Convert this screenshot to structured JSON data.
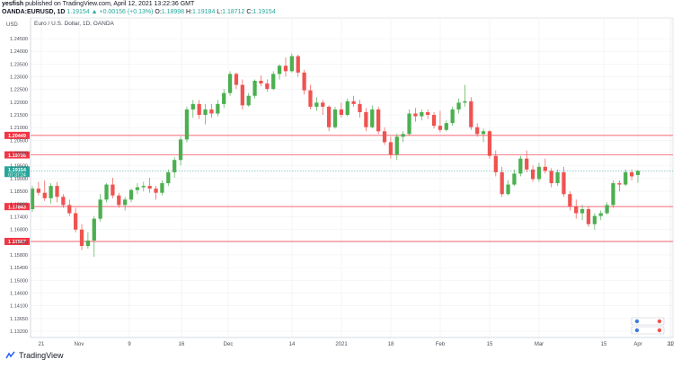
{
  "header": {
    "line1_user": "yesfish",
    "line1_rest": "published on TradingView.com, April 12, 2021 13:22:36 GMT",
    "symbol": "OANDA:EURUSD, 1D",
    "change": "1.19154 ▲ +0.00156 (+0.13%)",
    "o_label": "O:",
    "o_value": "1.18998",
    "h_label": "H:",
    "h_value": "1.19184",
    "l_label": "L:",
    "l_value": "1.18712",
    "c_label": "C:",
    "c_value": "1.19154"
  },
  "footer": {
    "brand": "TradingView"
  },
  "colors": {
    "up": "#26a69a",
    "up_body": "#4caf50",
    "down": "#ef5350",
    "grid": "#eef0f3",
    "hline": "#f23645",
    "axis_text": "#4a4e59"
  },
  "chart_data": {
    "type": "candlestick",
    "title": "Euro / U.S. Dollar, 1D, OANDA",
    "currency": "USD",
    "ylim": [
      1.1305,
      1.2475
    ],
    "y_ticks": [
      "1.24500",
      "1.24000",
      "1.23500",
      "1.23000",
      "1.22500",
      "1.22000",
      "1.21500",
      "1.21000",
      "1.20500",
      "1.20000",
      "1.19500",
      "1.19000",
      "1.18500",
      "1.18000",
      "1.17400",
      "1.16800",
      "1.16200",
      "1.15800",
      "1.15400",
      "1.15000",
      "1.14600",
      "1.14100",
      "1.13650",
      "1.13200"
    ],
    "x_ticks": [
      "21",
      "Nov",
      "9",
      "16",
      "Dec",
      "14",
      "2021",
      "18",
      "Feb",
      "15",
      "Mar",
      "15",
      "Apr",
      "12",
      "21"
    ],
    "last_price": "1.19154",
    "countdown": "07:37:24",
    "horizontal_lines": [
      {
        "label": "1.20449",
        "value": 1.20449
      },
      {
        "label": "1.19736",
        "value": 1.19736
      },
      {
        "label": "1.17843",
        "value": 1.17843
      },
      {
        "label": "1.16567",
        "value": 1.16567
      }
    ],
    "scale_icons": [
      "log-scale-icon",
      "percent-scale-icon"
    ],
    "candles": [
      [
        1.1775,
        1.186,
        1.1765,
        1.185
      ],
      [
        1.185,
        1.1875,
        1.1825,
        1.1835
      ],
      [
        1.1835,
        1.188,
        1.1805,
        1.1815
      ],
      [
        1.1815,
        1.187,
        1.1795,
        1.186
      ],
      [
        1.186,
        1.1875,
        1.18,
        1.182
      ],
      [
        1.182,
        1.183,
        1.178,
        1.179
      ],
      [
        1.179,
        1.181,
        1.175,
        1.176
      ],
      [
        1.176,
        1.178,
        1.169,
        1.17
      ],
      [
        1.17,
        1.172,
        1.1625,
        1.164
      ],
      [
        1.164,
        1.169,
        1.163,
        1.166
      ],
      [
        1.166,
        1.175,
        1.16,
        1.174
      ],
      [
        1.174,
        1.183,
        1.173,
        1.181
      ],
      [
        1.181,
        1.187,
        1.18,
        1.1865
      ],
      [
        1.1865,
        1.189,
        1.1815,
        1.1825
      ],
      [
        1.1825,
        1.1835,
        1.178,
        1.179
      ],
      [
        1.179,
        1.182,
        1.177,
        1.181
      ],
      [
        1.181,
        1.185,
        1.18,
        1.1845
      ],
      [
        1.1845,
        1.187,
        1.183,
        1.1855
      ],
      [
        1.1855,
        1.1875,
        1.184,
        1.186
      ],
      [
        1.186,
        1.189,
        1.1835,
        1.185
      ],
      [
        1.185,
        1.186,
        1.181,
        1.1835
      ],
      [
        1.1835,
        1.188,
        1.1825,
        1.187
      ],
      [
        1.187,
        1.192,
        1.186,
        1.191
      ],
      [
        1.191,
        1.1965,
        1.189,
        1.1955
      ],
      [
        1.1955,
        1.204,
        1.1935,
        1.203
      ],
      [
        1.203,
        1.215,
        1.202,
        1.214
      ],
      [
        1.214,
        1.2175,
        1.211,
        1.216
      ],
      [
        1.216,
        1.2175,
        1.2105,
        1.212
      ],
      [
        1.212,
        1.216,
        1.2085,
        1.214
      ],
      [
        1.214,
        1.216,
        1.211,
        1.2125
      ],
      [
        1.2125,
        1.2175,
        1.2115,
        1.216
      ],
      [
        1.216,
        1.2215,
        1.2145,
        1.22
      ],
      [
        1.22,
        1.228,
        1.219,
        1.227
      ],
      [
        1.227,
        1.2275,
        1.2215,
        1.223
      ],
      [
        1.223,
        1.225,
        1.214,
        1.2155
      ],
      [
        1.2155,
        1.22,
        1.215,
        1.219
      ],
      [
        1.219,
        1.225,
        1.218,
        1.2245
      ],
      [
        1.2245,
        1.2265,
        1.2225,
        1.2235
      ],
      [
        1.2235,
        1.225,
        1.2205,
        1.2215
      ],
      [
        1.2215,
        1.228,
        1.221,
        1.227
      ],
      [
        1.227,
        1.2305,
        1.225,
        1.23
      ],
      [
        1.23,
        1.233,
        1.226,
        1.228
      ],
      [
        1.228,
        1.2345,
        1.2275,
        1.2335
      ],
      [
        1.2335,
        1.234,
        1.226,
        1.2275
      ],
      [
        1.2275,
        1.2285,
        1.2195,
        1.221
      ],
      [
        1.221,
        1.223,
        1.214,
        1.215
      ],
      [
        1.215,
        1.2185,
        1.2135,
        1.2165
      ],
      [
        1.2165,
        1.2175,
        1.212,
        1.215
      ],
      [
        1.215,
        1.2155,
        1.206,
        1.2075
      ],
      [
        1.2075,
        1.215,
        1.207,
        1.214
      ],
      [
        1.214,
        1.2165,
        1.211,
        1.212
      ],
      [
        1.212,
        1.218,
        1.2115,
        1.217
      ],
      [
        1.217,
        1.219,
        1.215,
        1.216
      ],
      [
        1.216,
        1.2175,
        1.211,
        1.213
      ],
      [
        1.213,
        1.2145,
        1.206,
        1.2075
      ],
      [
        1.2075,
        1.2155,
        1.207,
        1.214
      ],
      [
        1.214,
        1.215,
        1.205,
        1.206
      ],
      [
        1.206,
        1.2075,
        1.201,
        1.202
      ],
      [
        1.202,
        1.204,
        1.196,
        1.1975
      ],
      [
        1.1975,
        1.205,
        1.1955,
        1.204
      ],
      [
        1.204,
        1.206,
        1.202,
        1.205
      ],
      [
        1.205,
        1.214,
        1.2045,
        1.2125
      ],
      [
        1.2125,
        1.2145,
        1.2095,
        1.2115
      ],
      [
        1.2115,
        1.214,
        1.21,
        1.213
      ],
      [
        1.213,
        1.214,
        1.2105,
        1.212
      ],
      [
        1.212,
        1.213,
        1.207,
        1.208
      ],
      [
        1.208,
        1.2135,
        1.2055,
        1.2065
      ],
      [
        1.2065,
        1.21,
        1.206,
        1.209
      ],
      [
        1.209,
        1.215,
        1.208,
        1.214
      ],
      [
        1.214,
        1.218,
        1.2125,
        1.2165
      ],
      [
        1.2165,
        1.223,
        1.215,
        1.217
      ],
      [
        1.217,
        1.2185,
        1.2065,
        1.2075
      ],
      [
        1.2075,
        1.209,
        1.204,
        1.205
      ],
      [
        1.205,
        1.207,
        1.202,
        1.206
      ],
      [
        1.206,
        1.2065,
        1.196,
        1.197
      ],
      [
        1.197,
        1.199,
        1.1895,
        1.191
      ],
      [
        1.191,
        1.193,
        1.182,
        1.183
      ],
      [
        1.183,
        1.188,
        1.1825,
        1.1865
      ],
      [
        1.1865,
        1.192,
        1.186,
        1.1905
      ],
      [
        1.1905,
        1.197,
        1.1895,
        1.196
      ],
      [
        1.196,
        1.199,
        1.191,
        1.192
      ],
      [
        1.192,
        1.1935,
        1.1875,
        1.1885
      ],
      [
        1.1885,
        1.1945,
        1.1875,
        1.193
      ],
      [
        1.193,
        1.196,
        1.1905,
        1.1915
      ],
      [
        1.1915,
        1.1925,
        1.1855,
        1.187
      ],
      [
        1.187,
        1.192,
        1.186,
        1.191
      ],
      [
        1.191,
        1.193,
        1.182,
        1.183
      ],
      [
        1.183,
        1.184,
        1.177,
        1.1785
      ],
      [
        1.1785,
        1.181,
        1.174,
        1.176
      ],
      [
        1.176,
        1.179,
        1.1735,
        1.1775
      ],
      [
        1.1775,
        1.1785,
        1.171,
        1.172
      ],
      [
        1.172,
        1.176,
        1.17,
        1.175
      ],
      [
        1.175,
        1.177,
        1.1735,
        1.176
      ],
      [
        1.176,
        1.18,
        1.1755,
        1.179
      ],
      [
        1.179,
        1.188,
        1.178,
        1.187
      ],
      [
        1.187,
        1.188,
        1.184,
        1.1865
      ],
      [
        1.1865,
        1.192,
        1.186,
        1.191
      ],
      [
        1.191,
        1.192,
        1.188,
        1.1895
      ],
      [
        1.19,
        1.1918,
        1.1871,
        1.1915
      ]
    ]
  }
}
